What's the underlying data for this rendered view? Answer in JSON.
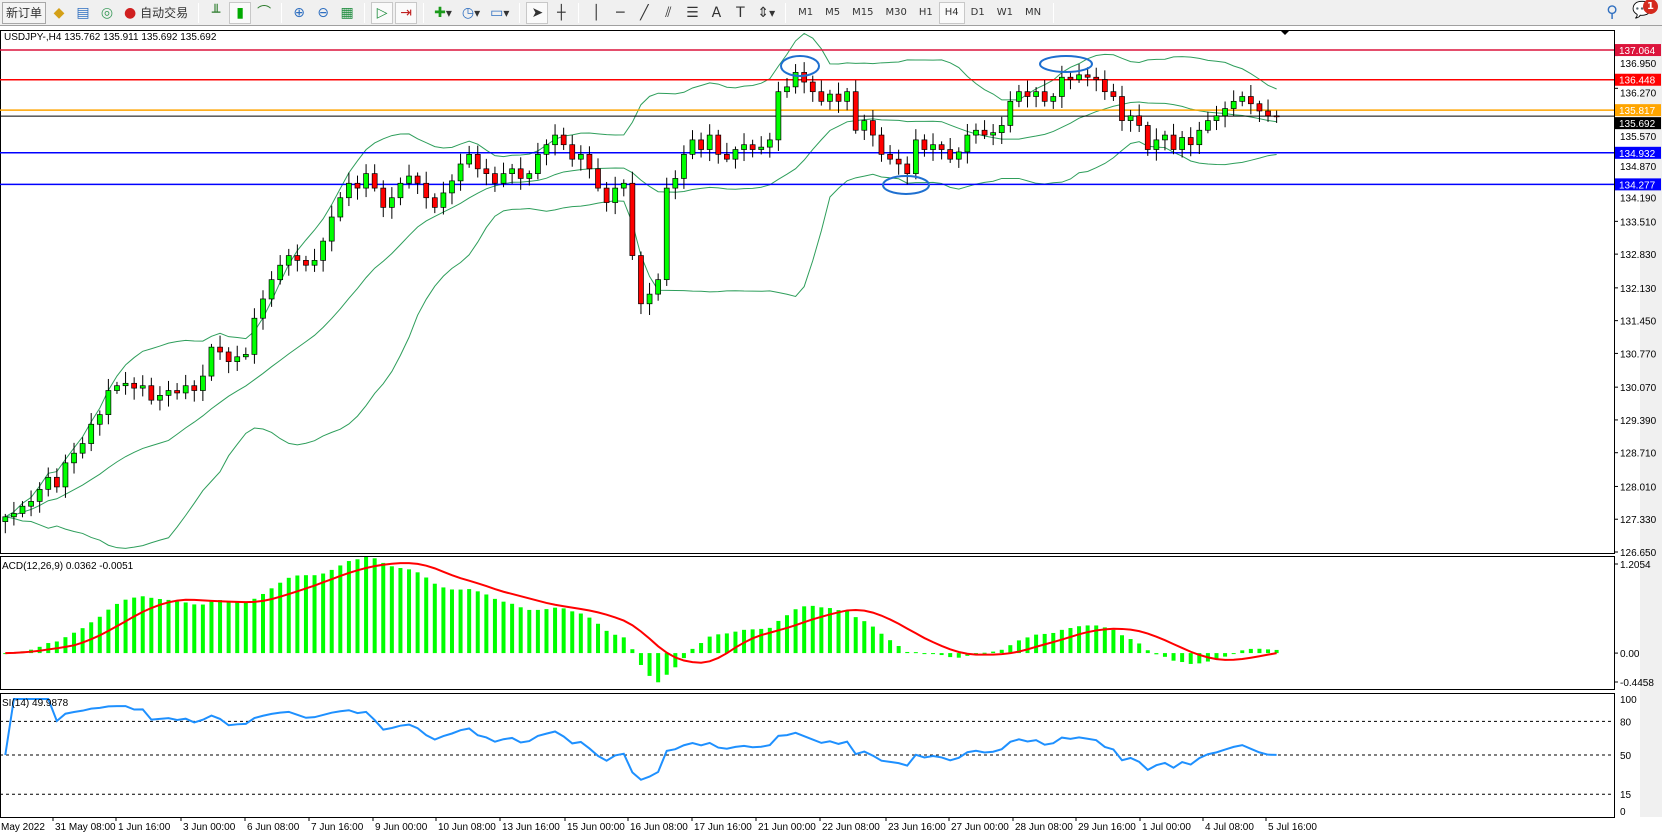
{
  "toolbar": {
    "new_order": "新订单",
    "auto_trading": "自动交易",
    "timeframes": [
      "M1",
      "M5",
      "M15",
      "M30",
      "H1",
      "H4",
      "D1",
      "W1",
      "MN"
    ],
    "active_timeframe": "H4",
    "notification_count": "1"
  },
  "chart": {
    "header": "USDJPY-,H4  135.762 135.911 135.692 135.692",
    "price_ticks": [
      "136.950",
      "136.270",
      "135.570",
      "134.870",
      "134.190",
      "133.510",
      "132.830",
      "132.130",
      "131.450",
      "130.770",
      "130.070",
      "129.390",
      "128.710",
      "128.010",
      "127.330",
      "126.650"
    ],
    "hlines": [
      {
        "price": 137.064,
        "label": "137.064",
        "color": "#dc143c"
      },
      {
        "price": 136.448,
        "label": "136.448",
        "color": "#ff0000"
      },
      {
        "price": 135.817,
        "label": "135.817",
        "color": "#ffa500"
      },
      {
        "price": 135.692,
        "label": "135.692",
        "color": "#000000"
      },
      {
        "price": 134.932,
        "label": "134.932",
        "color": "#0000ff"
      },
      {
        "price": 134.277,
        "label": "134.277",
        "color": "#0000ff"
      }
    ],
    "colors": {
      "bull": "#00ff00",
      "bear": "#ff0000",
      "bands": "#2e9e5b",
      "macd_hist": "#00ff00",
      "macd_signal": "#ff0000",
      "rsi": "#1e90ff",
      "ellipse": "#1e6fd0"
    },
    "macd": {
      "label": "ACD(12,26,9) 0.0362 -0.0051",
      "ticks": [
        "1.2054",
        "0.00",
        "-0.4458"
      ]
    },
    "rsi": {
      "label": "SI(14) 49.9878",
      "ticks": [
        "100",
        "80",
        "50",
        "15",
        "0"
      ]
    },
    "time_labels": [
      "May 2022",
      "31 May 08:00",
      "1 Jun 16:00",
      "3 Jun 00:00",
      "6 Jun 08:00",
      "7 Jun 16:00",
      "9 Jun 00:00",
      "10 Jun 08:00",
      "13 Jun 16:00",
      "15 Jun 00:00",
      "16 Jun 08:00",
      "17 Jun 16:00",
      "21 Jun 00:00",
      "22 Jun 08:00",
      "23 Jun 16:00",
      "27 Jun 00:00",
      "28 Jun 08:00",
      "29 Jun 16:00",
      "1 Jul 00:00",
      "4 Jul 08:00",
      "5 Jul 16:00"
    ]
  },
  "chart_data": {
    "type": "candlestick",
    "symbol": "USDJPY-",
    "timeframe": "H4",
    "ylim": [
      126.65,
      137.1
    ],
    "bollinger": {
      "period": 20,
      "deviation": 2
    },
    "macd": {
      "fast": 12,
      "slow": 26,
      "signal": 9,
      "ylim": [
        -0.4458,
        1.2054
      ]
    },
    "rsi": {
      "period": 14,
      "levels": [
        80,
        50,
        15
      ],
      "ylim": [
        0,
        100
      ]
    },
    "close": [
      127.38,
      127.45,
      127.6,
      127.7,
      127.95,
      128.2,
      128.0,
      128.5,
      128.7,
      128.9,
      129.3,
      129.5,
      130.0,
      130.1,
      130.15,
      130.05,
      130.1,
      129.8,
      129.9,
      130.0,
      129.95,
      130.1,
      130.0,
      130.3,
      130.9,
      130.8,
      130.6,
      130.7,
      130.75,
      131.5,
      131.9,
      132.3,
      132.6,
      132.8,
      132.7,
      132.6,
      132.7,
      133.1,
      133.6,
      134.0,
      134.3,
      134.2,
      134.5,
      134.2,
      133.8,
      134.0,
      134.3,
      134.45,
      134.3,
      134.0,
      133.8,
      134.1,
      134.35,
      134.7,
      134.9,
      134.6,
      134.5,
      134.3,
      134.5,
      134.6,
      134.4,
      134.5,
      134.9,
      135.1,
      135.3,
      135.1,
      134.8,
      134.9,
      134.6,
      134.2,
      133.9,
      134.2,
      134.3,
      132.8,
      131.8,
      132.0,
      132.3,
      134.2,
      134.4,
      134.9,
      135.2,
      135.0,
      135.3,
      134.9,
      134.8,
      135.0,
      135.1,
      135.0,
      135.05,
      135.2,
      136.2,
      136.3,
      136.6,
      136.4,
      136.2,
      136.0,
      136.15,
      136.0,
      136.2,
      135.4,
      135.6,
      135.3,
      134.9,
      134.8,
      134.7,
      134.5,
      135.2,
      135.0,
      135.1,
      135.0,
      134.8,
      134.95,
      135.3,
      135.4,
      135.3,
      135.35,
      135.5,
      136.0,
      136.2,
      136.1,
      136.2,
      136.0,
      136.1,
      136.5,
      136.45,
      136.55,
      136.5,
      136.45,
      136.2,
      136.1,
      135.6,
      135.7,
      135.5,
      135.0,
      135.2,
      135.3,
      135.0,
      135.25,
      135.1,
      135.4,
      135.6,
      135.7,
      135.85,
      136.0,
      136.1,
      135.95,
      135.8,
      135.7,
      135.692
    ]
  }
}
